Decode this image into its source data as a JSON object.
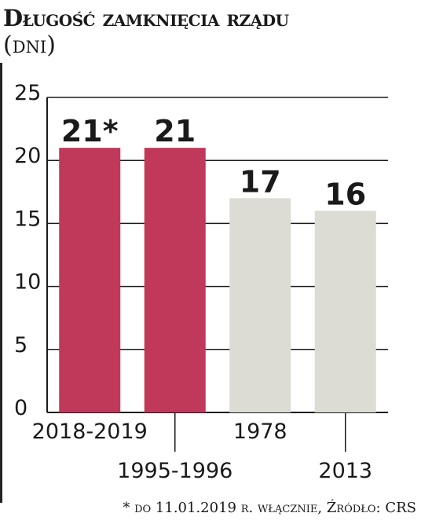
{
  "title": "Długość zamknięcia rządu",
  "unit": "(dni)",
  "footnote": "* do 11.01.2019 r. włącznie, Źródło: CRS",
  "colors": {
    "highlight": "#c0385a",
    "normal": "#dcdcd4",
    "grid": "#1a1a1a",
    "text": "#1a1a1a"
  },
  "chart_data": {
    "type": "bar",
    "categories": [
      "2018-2019",
      "1995-1996",
      "1978",
      "2013"
    ],
    "values": [
      21,
      21,
      17,
      16
    ],
    "data_labels": [
      "21*",
      "21",
      "17",
      "16"
    ],
    "highlight": [
      true,
      true,
      false,
      false
    ],
    "title": "Długość zamknięcia rządu",
    "xlabel": "",
    "ylabel": "",
    "ylim": [
      0,
      25
    ],
    "yticks": [
      "0",
      "5",
      "10",
      "15",
      "20",
      "25"
    ],
    "grid": true,
    "legend": "none"
  }
}
